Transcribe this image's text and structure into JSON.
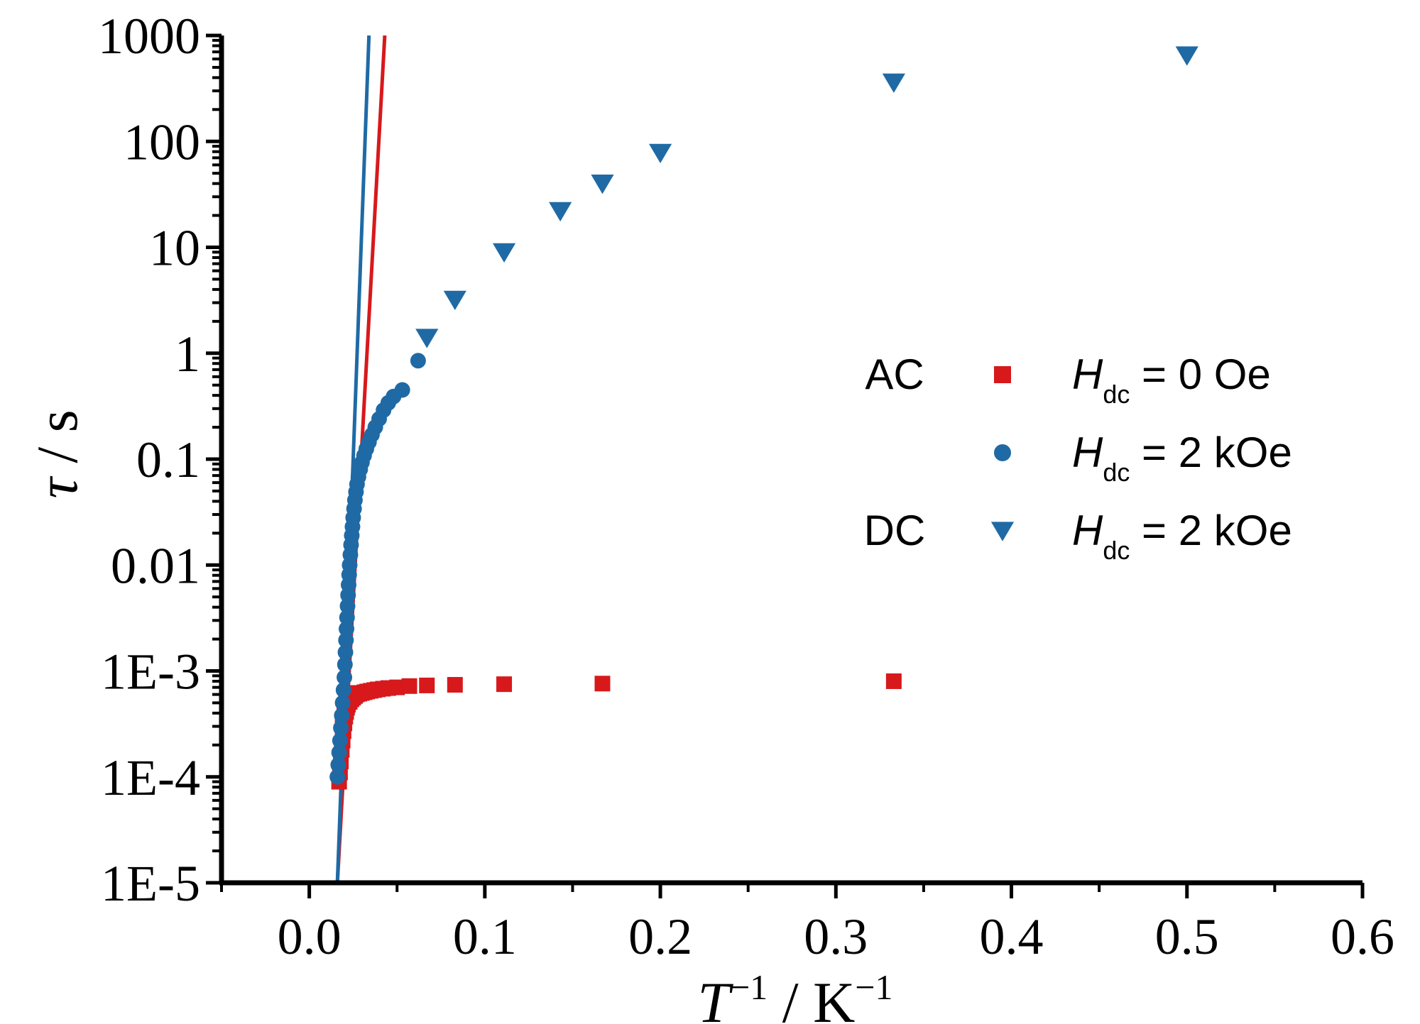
{
  "chart_data": {
    "type": "scatter",
    "xlabel": {
      "main": "T",
      "main_sup": "−1",
      "sep": " / K",
      "unit_sup": "−1"
    },
    "ylabel": {
      "symbol": "τ",
      "sep": " / s"
    },
    "xlim": [
      -0.05,
      0.6
    ],
    "ylim": [
      1e-05,
      1000
    ],
    "yscale": "log",
    "xticks": [
      0.0,
      0.1,
      0.2,
      0.3,
      0.4,
      0.5,
      0.6
    ],
    "xtick_labels": [
      "0.0",
      "0.1",
      "0.2",
      "0.3",
      "0.4",
      "0.5",
      "0.6"
    ],
    "yticks": [
      1e-05,
      0.0001,
      0.001,
      0.01,
      0.1,
      1,
      10,
      100,
      1000
    ],
    "ytick_labels": [
      "1E-5",
      "1E-4",
      "1E-3",
      "0.01",
      "0.1",
      "1",
      "10",
      "100",
      "1000"
    ],
    "grid": false,
    "legend": {
      "position": "center-right",
      "entries": [
        {
          "group": "AC",
          "marker": "square",
          "color": "#d7191c",
          "symbol": "H",
          "sub": "dc",
          "text": " = 0 Oe"
        },
        {
          "group": "",
          "marker": "circle",
          "color": "#1f6aa5",
          "symbol": "H",
          "sub": "dc",
          "text": " = 2 kOe"
        },
        {
          "group": "DC",
          "marker": "triangle-down",
          "color": "#1f6aa5",
          "symbol": "H",
          "sub": "dc",
          "text": " = 2 kOe"
        }
      ]
    },
    "series": [
      {
        "marker": "square",
        "color": "#d7191c",
        "points": [
          [
            0.017,
            9e-05
          ],
          [
            0.0175,
            0.00011
          ],
          [
            0.018,
            0.00014
          ],
          [
            0.0185,
            0.00018
          ],
          [
            0.019,
            0.00022
          ],
          [
            0.0195,
            0.00027
          ],
          [
            0.02,
            0.00032
          ],
          [
            0.0205,
            0.00037
          ],
          [
            0.021,
            0.00041
          ],
          [
            0.0215,
            0.00045
          ],
          [
            0.022,
            0.00048
          ],
          [
            0.023,
            0.00051
          ],
          [
            0.024,
            0.00054
          ],
          [
            0.025,
            0.00056
          ],
          [
            0.026,
            0.00058
          ],
          [
            0.027,
            0.0006
          ],
          [
            0.0285,
            0.00061
          ],
          [
            0.03,
            0.00062
          ],
          [
            0.0315,
            0.00063
          ],
          [
            0.033,
            0.00064
          ],
          [
            0.035,
            0.00065
          ],
          [
            0.037,
            0.00066
          ],
          [
            0.039,
            0.00067
          ],
          [
            0.042,
            0.00068
          ],
          [
            0.045,
            0.00069
          ],
          [
            0.05,
            0.0007
          ],
          [
            0.057,
            0.00072
          ],
          [
            0.067,
            0.00073
          ],
          [
            0.083,
            0.00074
          ],
          [
            0.111,
            0.00075
          ],
          [
            0.167,
            0.00076
          ],
          [
            0.333,
            0.0008
          ],
          [
            0.019,
            0.00035
          ],
          [
            0.02,
            0.00045
          ],
          [
            0.021,
            0.00055
          ],
          [
            0.022,
            0.0006
          ],
          [
            0.023,
            0.00062
          ]
        ]
      },
      {
        "marker": "circle",
        "color": "#1f6aa5",
        "points": [
          [
            0.016,
            0.0001
          ],
          [
            0.0165,
            0.00013
          ],
          [
            0.017,
            0.00017
          ],
          [
            0.0175,
            0.00022
          ],
          [
            0.018,
            0.00029
          ],
          [
            0.0185,
            0.00038
          ],
          [
            0.019,
            0.0005
          ],
          [
            0.0195,
            0.00066
          ],
          [
            0.02,
            0.00087
          ],
          [
            0.0203,
            0.00115
          ],
          [
            0.0206,
            0.0015
          ],
          [
            0.0209,
            0.00195
          ],
          [
            0.0212,
            0.0025
          ],
          [
            0.0215,
            0.0032
          ],
          [
            0.0218,
            0.0041
          ],
          [
            0.0221,
            0.0052
          ],
          [
            0.0224,
            0.0065
          ],
          [
            0.0227,
            0.0081
          ],
          [
            0.023,
            0.01
          ],
          [
            0.0234,
            0.0125
          ],
          [
            0.0238,
            0.0155
          ],
          [
            0.0242,
            0.019
          ],
          [
            0.0246,
            0.023
          ],
          [
            0.025,
            0.028
          ],
          [
            0.0255,
            0.034
          ],
          [
            0.026,
            0.041
          ],
          [
            0.0266,
            0.049
          ],
          [
            0.0272,
            0.058
          ],
          [
            0.028,
            0.068
          ],
          [
            0.029,
            0.08
          ],
          [
            0.03,
            0.093
          ],
          [
            0.0312,
            0.108
          ],
          [
            0.0325,
            0.125
          ],
          [
            0.034,
            0.145
          ],
          [
            0.0357,
            0.17
          ],
          [
            0.0376,
            0.2
          ],
          [
            0.0398,
            0.24
          ],
          [
            0.0423,
            0.29
          ],
          [
            0.045,
            0.34
          ],
          [
            0.048,
            0.39
          ],
          [
            0.053,
            0.45
          ],
          [
            0.062,
            0.85
          ]
        ]
      },
      {
        "marker": "triangle-down",
        "color": "#1f6aa5",
        "points": [
          [
            0.067,
            1.4
          ],
          [
            0.083,
            3.2
          ],
          [
            0.111,
            9.0
          ],
          [
            0.143,
            22.0
          ],
          [
            0.167,
            40.0
          ],
          [
            0.2,
            78.0
          ],
          [
            0.333,
            360.0
          ],
          [
            0.5,
            650.0
          ]
        ]
      }
    ],
    "fit_lines": [
      {
        "color": "#d7191c",
        "from": [
          0.016,
          1e-05
        ],
        "to": [
          0.043,
          1000
        ]
      },
      {
        "color": "#1f6aa5",
        "from": [
          0.016,
          1e-05
        ],
        "to": [
          0.034,
          1000
        ]
      }
    ]
  }
}
